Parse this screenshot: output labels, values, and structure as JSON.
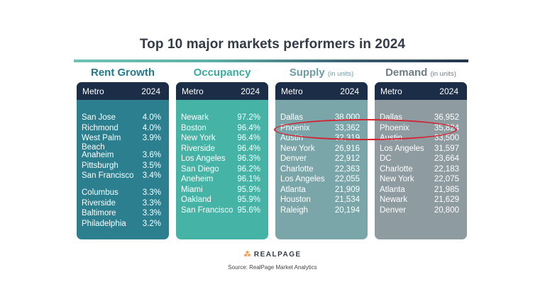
{
  "chart_data": {
    "type": "table",
    "title": "Top 10  major markets performers in 2024",
    "column_headers": [
      "Metro",
      "2024"
    ],
    "panels": [
      {
        "key": "rent",
        "heading": "Rent Growth",
        "subheading": "",
        "color": "#2c7f8f",
        "heading_color": "#23788a",
        "rows": [
          {
            "metro": "San Jose",
            "value": "4.0%"
          },
          {
            "metro": "Richmond",
            "value": "4.0%"
          },
          {
            "metro": "West Palm Beach",
            "value": "3.9%"
          },
          {
            "metro": "Anaheim",
            "value": "3.6%"
          },
          {
            "metro": "Pittsburgh",
            "value": "3.5%"
          },
          {
            "metro": "San Francisco",
            "value": "3.4%"
          },
          {
            "metro": "Columbus",
            "value": "3.3%"
          },
          {
            "metro": "Riverside",
            "value": "3.3%"
          },
          {
            "metro": "Baltimore",
            "value": "3.3%"
          },
          {
            "metro": "Philadelphia",
            "value": "3.2%"
          }
        ]
      },
      {
        "key": "occupancy",
        "heading": "Occupancy",
        "subheading": "",
        "color": "#45b3a6",
        "heading_color": "#3aaba0",
        "rows": [
          {
            "metro": "Newark",
            "value": "97.2%"
          },
          {
            "metro": "Boston",
            "value": "96.4%"
          },
          {
            "metro": "New York",
            "value": "96.4%"
          },
          {
            "metro": "Riverside",
            "value": "96.4%"
          },
          {
            "metro": "Los Angeles",
            "value": "96.3%"
          },
          {
            "metro": "San Diego",
            "value": "96.2%"
          },
          {
            "metro": "Aneheim",
            "value": "96.1%"
          },
          {
            "metro": "Miami",
            "value": "95.9%"
          },
          {
            "metro": "Oakland",
            "value": "95.9%"
          },
          {
            "metro": "San Francisco",
            "value": "95.6%"
          }
        ]
      },
      {
        "key": "supply",
        "heading": "Supply",
        "subheading": "(in units)",
        "color": "#7aa6aa",
        "heading_color": "#6d9ca3",
        "rows": [
          {
            "metro": "Dallas",
            "value": "38,000"
          },
          {
            "metro": "Phoenix",
            "value": "33,362"
          },
          {
            "metro": "Austin",
            "value": "32,319"
          },
          {
            "metro": "New York",
            "value": "26,916"
          },
          {
            "metro": "Denver",
            "value": "22,912"
          },
          {
            "metro": "Charlotte",
            "value": "22,363"
          },
          {
            "metro": "Los Angeles",
            "value": "22,055"
          },
          {
            "metro": "Atlanta",
            "value": "21,909"
          },
          {
            "metro": "Houston",
            "value": "21,534"
          },
          {
            "metro": "Raleigh",
            "value": "20,194"
          }
        ]
      },
      {
        "key": "demand",
        "heading": "Demand",
        "subheading": "(in units)",
        "color": "#8e9ba1",
        "heading_color": "#6f7e86",
        "rows": [
          {
            "metro": "Dallas",
            "value": "36,952"
          },
          {
            "metro": "Phoenix",
            "value": "35,824"
          },
          {
            "metro": "Austin",
            "value": "33,500"
          },
          {
            "metro": "Los Angeles",
            "value": "31,597"
          },
          {
            "metro": "DC",
            "value": "23,664"
          },
          {
            "metro": "Charlotte",
            "value": "22,183"
          },
          {
            "metro": "New York",
            "value": "22,075"
          },
          {
            "metro": "Atlanta",
            "value": "21,985"
          },
          {
            "metro": "Newark",
            "value": "21,629"
          },
          {
            "metro": "Denver",
            "value": "20,800"
          }
        ]
      }
    ],
    "highlight": {
      "metro": "Phoenix",
      "panels": [
        "supply",
        "demand"
      ],
      "color": "#d32330"
    }
  },
  "brand": {
    "name": "REALPAGE",
    "mark": "⁂",
    "accent_color": "#f2832a"
  },
  "source": "Source: RealPage Market Analytics"
}
